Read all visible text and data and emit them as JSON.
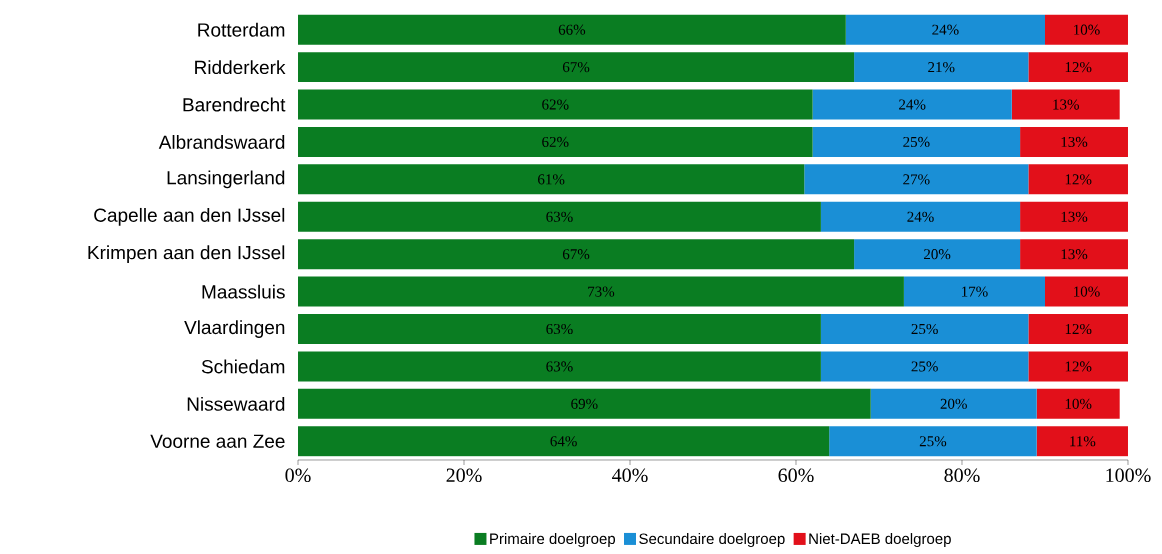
{
  "chart_data": {
    "type": "bar",
    "orientation": "horizontal",
    "stacked": true,
    "categories": [
      "Rotterdam",
      "Ridderkerk",
      "Barendrecht",
      "Albrandswaard",
      "Lansingerland",
      "Capelle aan den IJssel",
      "Krimpen aan den IJssel",
      "Maassluis",
      "Vlaardingen",
      "Schiedam",
      "Nissewaard",
      "Voorne aan Zee"
    ],
    "series": [
      {
        "name": "Primaire doelgroep",
        "color": "#0a7d22",
        "values": [
          66,
          67,
          62,
          62,
          61,
          63,
          67,
          73,
          63,
          63,
          69,
          64
        ],
        "value_labels": [
          "66%",
          "67%",
          "62%",
          "62%",
          "61%",
          "63%",
          "67%",
          "73%",
          "63%",
          "63%",
          "69%",
          "64%"
        ]
      },
      {
        "name": "Secundaire doelgroep",
        "color": "#1a8fd6",
        "values": [
          24,
          21,
          24,
          25,
          27,
          24,
          20,
          17,
          25,
          25,
          20,
          25
        ],
        "value_labels": [
          "24%",
          "21%",
          "24%",
          "25%",
          "27%",
          "24%",
          "20%",
          "17%",
          "25%",
          "25%",
          "20%",
          "25%"
        ]
      },
      {
        "name": "Niet-DAEB doelgroep",
        "color": "#e2101a",
        "values": [
          10,
          12,
          13,
          13,
          12,
          13,
          13,
          10,
          12,
          12,
          10,
          11
        ],
        "value_labels": [
          "10%",
          "12%",
          "13%",
          "13%",
          "12%",
          "13%",
          "13%",
          "10%",
          "12%",
          "12%",
          "10%",
          "11%"
        ]
      }
    ],
    "xlim": [
      0,
      100
    ],
    "xticks": [
      {
        "value": 0,
        "label": "0%"
      },
      {
        "value": 20,
        "label": "20%"
      },
      {
        "value": 40,
        "label": "40%"
      },
      {
        "value": 60,
        "label": "60%"
      },
      {
        "value": 80,
        "label": "80%"
      },
      {
        "value": 100,
        "label": "100%"
      }
    ],
    "legend": "bottom"
  }
}
